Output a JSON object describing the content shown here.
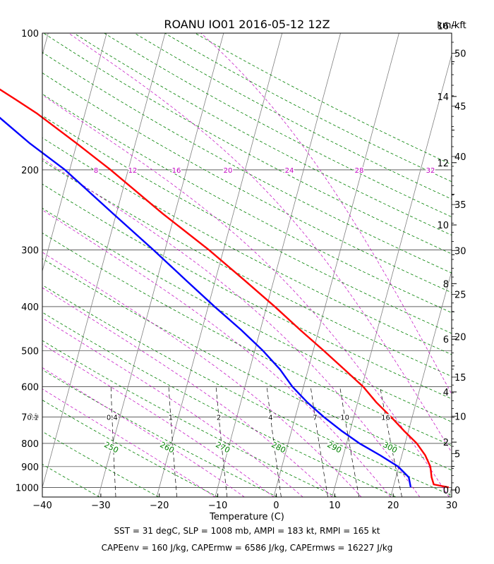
{
  "chart_data": {
    "type": "skew-t",
    "title": "ROANU IO01 2016-05-12 12Z",
    "xlabel": "Temperature (C)",
    "ylabel": "",
    "height_unit_label": "km/kft",
    "xlim": [
      -40,
      30
    ],
    "plim": [
      1050,
      100
    ],
    "x_ticks": [
      -40,
      -30,
      -20,
      -10,
      0,
      10,
      20,
      30
    ],
    "x_tick_labels": [
      "−40",
      "−30",
      "−20",
      "−10",
      "0",
      "10",
      "20",
      "30"
    ],
    "p_ticks": [
      100,
      200,
      300,
      400,
      500,
      600,
      700,
      800,
      900,
      1000
    ],
    "km_ticks": [
      0,
      2,
      4,
      6,
      8,
      10,
      12,
      14,
      16
    ],
    "kft_ticks": [
      0,
      5,
      10,
      15,
      20,
      25,
      30,
      35,
      40,
      45,
      50
    ],
    "mixing_ratio_labels_700": [
      "0.1",
      "0.4",
      "1",
      "2",
      "4",
      "7",
      "10",
      "16"
    ],
    "mixing_ratio_values": [
      0.1,
      0.4,
      1,
      2,
      4,
      7,
      10,
      16
    ],
    "moist_adiabat_labels_200": [
      "8",
      "12",
      "16",
      "20",
      "24",
      "28",
      "32"
    ],
    "moist_adiabat_theta_e": [
      8,
      12,
      16,
      20,
      24,
      28,
      32
    ],
    "dry_adiabat_labels_800": [
      "250",
      "260",
      "270",
      "280",
      "290",
      "300"
    ],
    "series": [
      {
        "name": "temperature",
        "color": "#ff0000",
        "points": [
          [
            1000,
            29.5
          ],
          [
            985,
            26.8
          ],
          [
            950,
            26.1
          ],
          [
            900,
            25.4
          ],
          [
            850,
            24.0
          ],
          [
            800,
            22.0
          ],
          [
            750,
            19.2
          ],
          [
            700,
            16.4
          ],
          [
            650,
            13.2
          ],
          [
            600,
            10.2
          ],
          [
            550,
            6.2
          ],
          [
            500,
            1.8
          ],
          [
            450,
            -3.2
          ],
          [
            400,
            -8.6
          ],
          [
            350,
            -15.0
          ],
          [
            300,
            -22.5
          ],
          [
            250,
            -32.0
          ],
          [
            200,
            -43.0
          ],
          [
            175,
            -50.0
          ],
          [
            150,
            -58.3
          ],
          [
            140,
            -62.5
          ],
          [
            125,
            -69.5
          ],
          [
            110,
            -74.0
          ],
          [
            100,
            -75.8
          ]
        ]
      },
      {
        "name": "dewpoint",
        "color": "#0000ff",
        "points": [
          [
            1000,
            23.0
          ],
          [
            950,
            22.2
          ],
          [
            900,
            19.9
          ],
          [
            850,
            16.3
          ],
          [
            800,
            12.2
          ],
          [
            750,
            8.5
          ],
          [
            700,
            4.9
          ],
          [
            650,
            1.4
          ],
          [
            600,
            -1.9
          ],
          [
            550,
            -4.8
          ],
          [
            500,
            -8.6
          ],
          [
            450,
            -13.3
          ],
          [
            400,
            -18.9
          ],
          [
            350,
            -25.0
          ],
          [
            300,
            -32.0
          ],
          [
            250,
            -40.5
          ],
          [
            200,
            -50.8
          ],
          [
            175,
            -58.0
          ],
          [
            150,
            -65.5
          ],
          [
            140,
            -69.3
          ],
          [
            125,
            -75.7
          ],
          [
            110,
            -81.4
          ],
          [
            100,
            -84.0
          ]
        ]
      }
    ],
    "colors": {
      "temperature": "#ff0000",
      "dewpoint": "#0000ff",
      "dry_adiabat": "#008000",
      "moist_adiabat": "#c000c0",
      "mixing_ratio": "#000000",
      "isotherm": "#808080",
      "isobar": "#000000"
    }
  },
  "footer": {
    "line1": "SST = 31 degC, SLP = 1008 mb, AMPI = 183 kt, RMPI = 165 kt",
    "line2": "CAPEenv = 160 J/kg, CAPErmw = 6586 J/kg, CAPErmws = 16227 J/kg"
  }
}
